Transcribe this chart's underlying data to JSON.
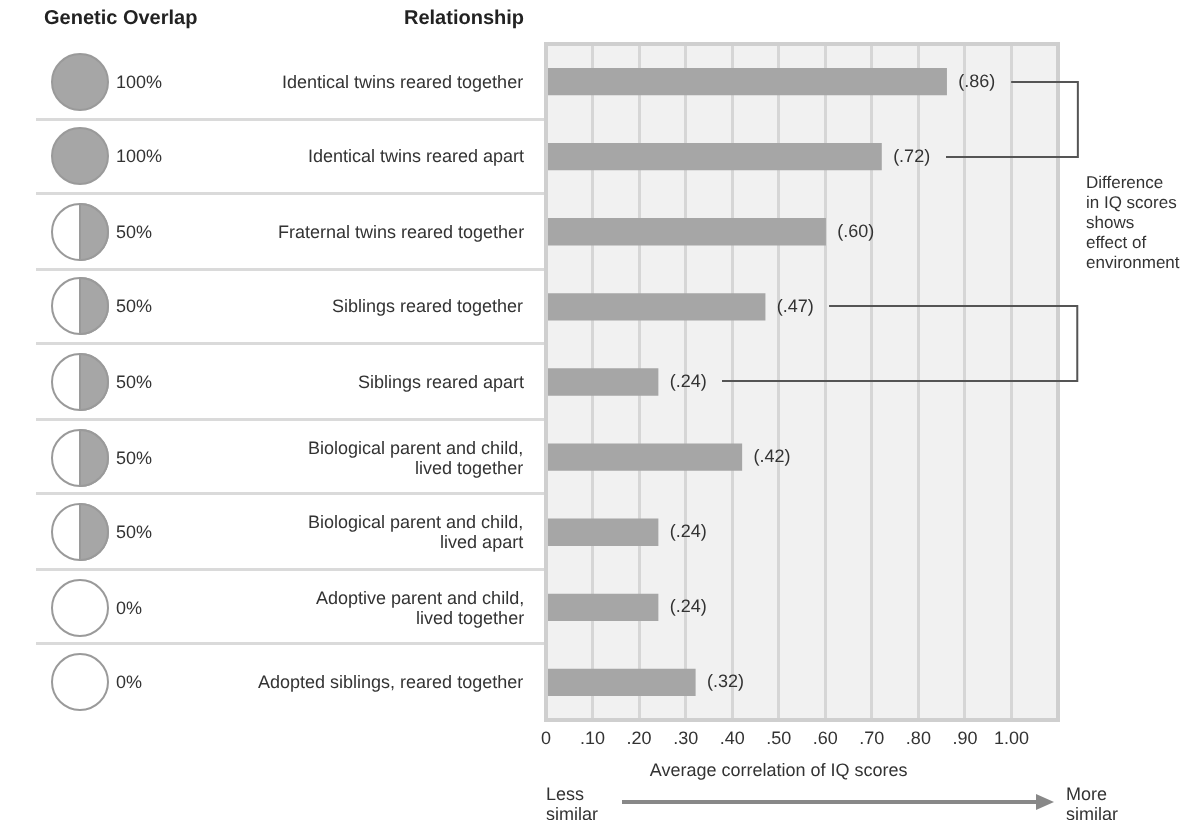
{
  "chart_data": {
    "type": "bar",
    "orientation": "horizontal",
    "categories": [
      "Identical twins reared together",
      "Identical twins reared apart",
      "Fraternal twins reared together",
      "Siblings reared together",
      "Siblings reared apart",
      "Biological parent and child, lived together",
      "Biological parent and child, lived apart",
      "Adoptive parent and child, lived together",
      "Adopted siblings, reared together"
    ],
    "values": [
      0.86,
      0.72,
      0.6,
      0.47,
      0.24,
      0.42,
      0.24,
      0.24,
      0.32
    ],
    "value_labels": [
      "(.86)",
      "(.72)",
      "(.60)",
      "(.47)",
      "(.24)",
      "(.42)",
      "(.24)",
      "(.24)",
      "(.32)"
    ],
    "color": "#a6a6a6",
    "xlim": [
      0,
      1.1
    ],
    "xticks": [
      0,
      {
        "value": 0.1,
        "label": ".10"
      },
      {
        "value": 0.2,
        "label": ".20"
      },
      {
        "value": 0.3,
        "label": ".30"
      },
      {
        "value": 0.4,
        "label": ".40"
      },
      {
        "value": 0.5,
        "label": ".50"
      },
      {
        "value": 0.6,
        "label": ".60"
      },
      {
        "value": 0.7,
        "label": ".70"
      },
      {
        "value": 0.8,
        "label": ".80"
      },
      {
        "value": 0.9,
        "label": ".90"
      },
      {
        "value": 1,
        "label": "1.00"
      }
    ],
    "xlabel": "Average correlation of IQ scores",
    "grid": "x",
    "annotations": [
      "Genetic Overlap",
      "Relationship",
      "100%",
      "100%",
      "50%",
      "50%",
      "50%",
      "50%",
      "50%",
      "0%",
      "0%",
      "Difference in IQ scores shows effect of environment",
      "Less similar",
      "More similar"
    ]
  }
}
